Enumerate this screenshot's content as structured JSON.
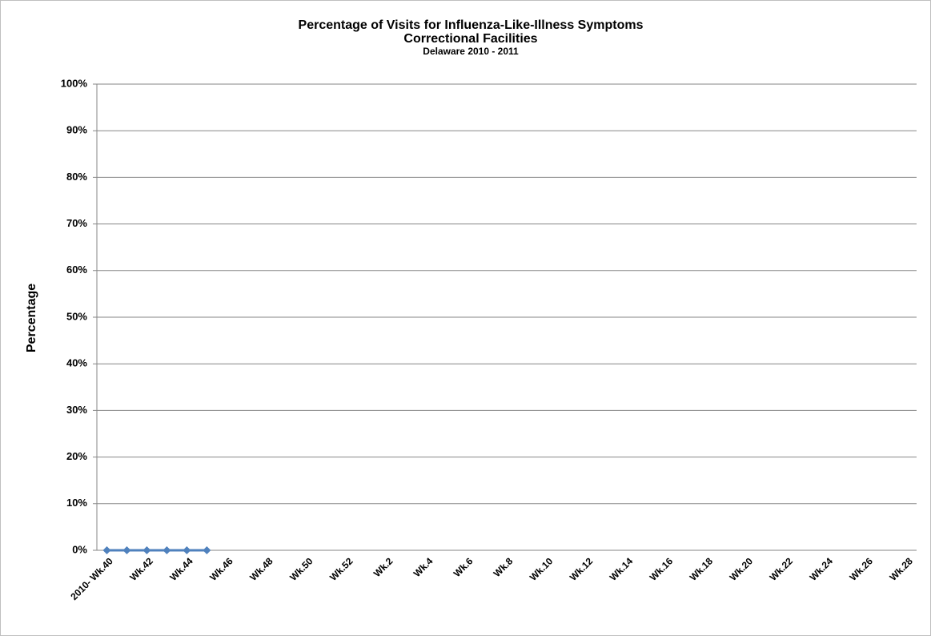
{
  "chart_data": {
    "type": "line",
    "title": "Percentage of Visits for Influenza-Like-Illness Symptoms",
    "subtitle": [
      "Correctional Facilities",
      "Delaware 2010 - 2011"
    ],
    "y_label": "Percentage",
    "categories": [
      "2010- Wk.40",
      null,
      "Wk.42",
      null,
      "Wk.44",
      null,
      "Wk.46",
      null,
      "Wk.48",
      null,
      "Wk.50",
      null,
      "Wk.52",
      null,
      "Wk.2",
      null,
      "Wk.4",
      null,
      "Wk.6",
      null,
      "Wk.8",
      null,
      "Wk.10",
      null,
      "Wk.12",
      null,
      "Wk.14",
      null,
      "Wk.16",
      null,
      "Wk.18",
      null,
      "Wk.20",
      null,
      "Wk.22",
      null,
      "Wk.24",
      null,
      "Wk.26",
      null,
      "Wk.28"
    ],
    "series": [
      {
        "color": "#4f81bd",
        "values": [
          0,
          0,
          0,
          0,
          0,
          0,
          null,
          null,
          null,
          null,
          null,
          null,
          null,
          null,
          null,
          null,
          null,
          null,
          null,
          null,
          null,
          null,
          null,
          null,
          null,
          null,
          null,
          null,
          null,
          null,
          null,
          null,
          null,
          null,
          null,
          null,
          null,
          null,
          null,
          null,
          null
        ]
      }
    ],
    "ylim": [
      0,
      100
    ],
    "yticks": [
      {
        "value": 0,
        "label": "0%"
      },
      {
        "value": 10,
        "label": "10%"
      },
      {
        "value": 20,
        "label": "20%"
      },
      {
        "value": 30,
        "label": "30%"
      },
      {
        "value": 40,
        "label": "40%"
      },
      {
        "value": 50,
        "label": "50%"
      },
      {
        "value": 60,
        "label": "60%"
      },
      {
        "value": 70,
        "label": "70%"
      },
      {
        "value": 80,
        "label": "80%"
      },
      {
        "value": 90,
        "label": "90%"
      },
      {
        "value": 100,
        "label": "100%"
      }
    ],
    "grid": true
  }
}
